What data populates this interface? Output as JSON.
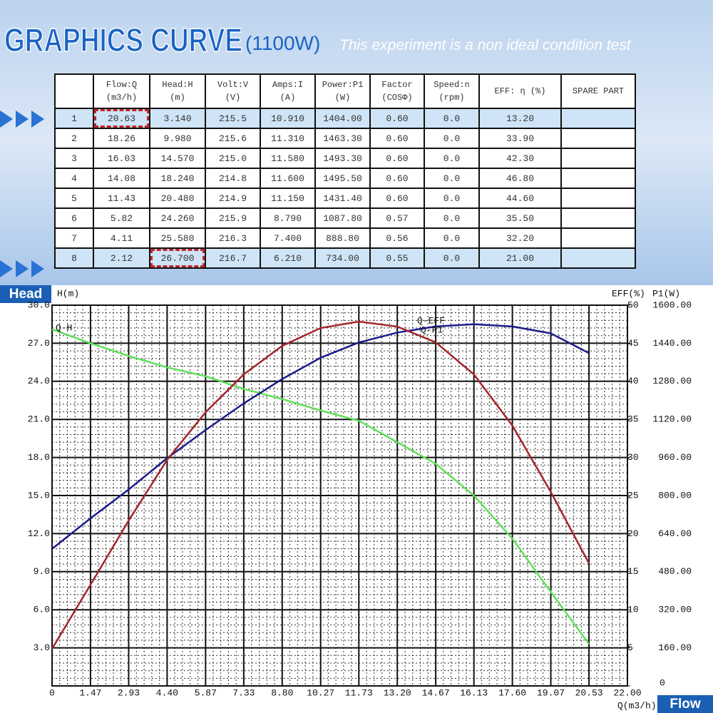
{
  "header": {
    "title": "GRAPHICS CURVE",
    "power": "(1100W)",
    "note": "This experiment is a non ideal condition test"
  },
  "table": {
    "columns": [
      [
        "",
        ""
      ],
      [
        "Flow:Q",
        "(m3/h)"
      ],
      [
        "Head:H",
        "(m)"
      ],
      [
        "Volt:V",
        "(V)"
      ],
      [
        "Amps:I",
        "(A)"
      ],
      [
        "Power:P1",
        "(W)"
      ],
      [
        "Factor",
        "(COSΦ)"
      ],
      [
        "Speed:n",
        "(rpm)"
      ],
      [
        "EFF: η (%)",
        ""
      ],
      [
        "SPARE PART",
        ""
      ]
    ],
    "rows": [
      [
        "1",
        "20.63",
        "3.140",
        "215.5",
        "10.910",
        "1404.00",
        "0.60",
        "0.0",
        "13.20",
        ""
      ],
      [
        "2",
        "18.26",
        "9.980",
        "215.6",
        "11.310",
        "1463.30",
        "0.60",
        "0.0",
        "33.90",
        ""
      ],
      [
        "3",
        "16.03",
        "14.570",
        "215.0",
        "11.580",
        "1493.30",
        "0.60",
        "0.0",
        "42.30",
        ""
      ],
      [
        "4",
        "14.08",
        "18.240",
        "214.8",
        "11.600",
        "1495.50",
        "0.60",
        "0.0",
        "46.80",
        ""
      ],
      [
        "5",
        "11.43",
        "20.480",
        "214.9",
        "11.150",
        "1431.40",
        "0.60",
        "0.0",
        "44.60",
        ""
      ],
      [
        "6",
        "5.82",
        "24.260",
        "215.9",
        "8.790",
        "1087.80",
        "0.57",
        "0.0",
        "35.50",
        ""
      ],
      [
        "7",
        "4.11",
        "25.580",
        "216.3",
        "7.400",
        "888.80",
        "0.56",
        "0.0",
        "32.20",
        ""
      ],
      [
        "8",
        "2.12",
        "26.700",
        "216.7",
        "6.210",
        "734.00",
        "0.55",
        "0.0",
        "21.00",
        ""
      ]
    ]
  },
  "chart_data": {
    "type": "line",
    "head_tag": "Head",
    "flow_tag": "Flow",
    "y_label": "H(m)",
    "y2_label": "EFF(%)",
    "y3_label": "P1(W)",
    "x_label": "Q(m3/h)",
    "grid": true,
    "x": [
      0,
      1.47,
      2.93,
      4.4,
      5.87,
      7.33,
      8.8,
      10.27,
      11.73,
      13.2,
      14.67,
      16.13,
      17.6,
      19.07,
      20.53
    ],
    "xlim": [
      0,
      22
    ],
    "xticks": [
      0,
      1.47,
      2.93,
      {
        "value": 4.4,
        "label": "4.40"
      },
      5.87,
      7.33,
      {
        "value": 8.8,
        "label": "8.80"
      },
      10.27,
      11.73,
      {
        "value": 13.2,
        "label": "13.20"
      },
      14.67,
      16.13,
      {
        "value": 17.6,
        "label": "17.60"
      },
      19.07,
      20.53,
      {
        "value": 22,
        "label": "22.00"
      }
    ],
    "ylim": [
      0,
      30
    ],
    "yticks": [
      {
        "value": 3,
        "label": "3.0"
      },
      {
        "value": 6,
        "label": "6.0"
      },
      {
        "value": 9,
        "label": "9.0"
      },
      {
        "value": 12,
        "label": "12.0"
      },
      {
        "value": 15,
        "label": "15.0"
      },
      {
        "value": 18,
        "label": "18.0"
      },
      {
        "value": 21,
        "label": "21.0"
      },
      {
        "value": 24,
        "label": "24.0"
      },
      {
        "value": 27,
        "label": "27.0"
      },
      {
        "value": 30,
        "label": "30.0"
      }
    ],
    "y2lim": [
      0,
      50
    ],
    "y2ticks": [
      0,
      5,
      10,
      15,
      20,
      25,
      30,
      35,
      40,
      45,
      50
    ],
    "y3lim": [
      0,
      1600
    ],
    "y3ticks": [
      {
        "value": 160,
        "label": "160.00"
      },
      {
        "value": 320,
        "label": "320.00"
      },
      {
        "value": 480,
        "label": "480.00"
      },
      {
        "value": 640,
        "label": "640.00"
      },
      {
        "value": 800,
        "label": "800.00"
      },
      {
        "value": 960,
        "label": "960.00"
      },
      {
        "value": 1120,
        "label": "1120.00"
      },
      {
        "value": 1280,
        "label": "1280.00"
      },
      {
        "value": 1440,
        "label": "1440.00"
      },
      {
        "value": 1600,
        "label": "1600.00"
      }
    ],
    "series": [
      {
        "name": "Q-H",
        "color": "#5fe05a",
        "values": [
          28.1,
          27.0,
          26.0,
          25.1,
          24.4,
          23.4,
          22.6,
          21.7,
          20.9,
          19.2,
          17.5,
          15.0,
          11.6,
          7.4,
          3.3
        ]
      },
      {
        "name": "Q-EFF",
        "color": "#1b1b8a",
        "axis": "y2",
        "values": [
          18.0,
          22.0,
          25.8,
          29.9,
          33.6,
          37.1,
          40.3,
          43.1,
          45.1,
          46.4,
          47.2,
          47.5,
          47.2,
          46.3,
          43.7
        ]
      },
      {
        "name": "Q-P1",
        "color": "#a3262a",
        "axis": "y3",
        "values": [
          156,
          425,
          695,
          950,
          1150,
          1309,
          1429,
          1504,
          1531,
          1510,
          1444,
          1309,
          1094,
          815,
          515
        ]
      }
    ]
  }
}
